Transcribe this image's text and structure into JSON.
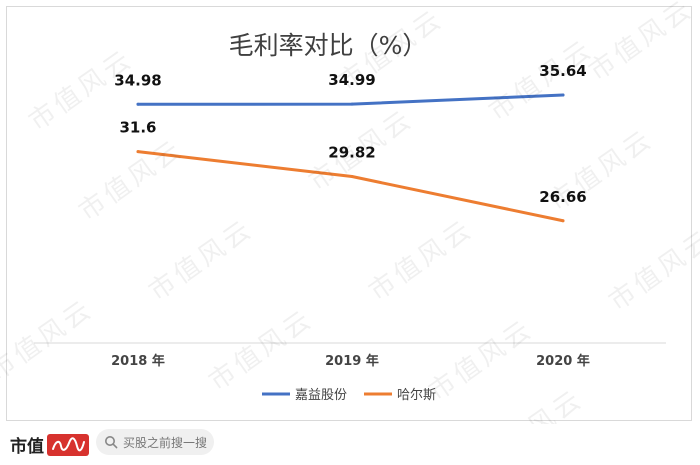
{
  "chart_data": {
    "type": "line",
    "title": "毛利率对比（%）",
    "categories": [
      "2018 年",
      "2019 年",
      "2020 年"
    ],
    "series": [
      {
        "name": "嘉益股份",
        "values": [
          34.98,
          34.99,
          35.64
        ],
        "labels": [
          "34.98",
          "34.99",
          "35.64"
        ],
        "color": "#4472c4"
      },
      {
        "name": "哈尔斯",
        "values": [
          31.6,
          29.82,
          26.66
        ],
        "labels": [
          "31.6",
          "29.82",
          "26.66"
        ],
        "color": "#ed7d31"
      }
    ],
    "ylim": [
      18,
      40
    ],
    "grid": false,
    "legend_position": "bottom"
  },
  "footer": {
    "brand": "市值",
    "search_placeholder": "买股之前搜一搜"
  },
  "watermark_text": "市值风云"
}
